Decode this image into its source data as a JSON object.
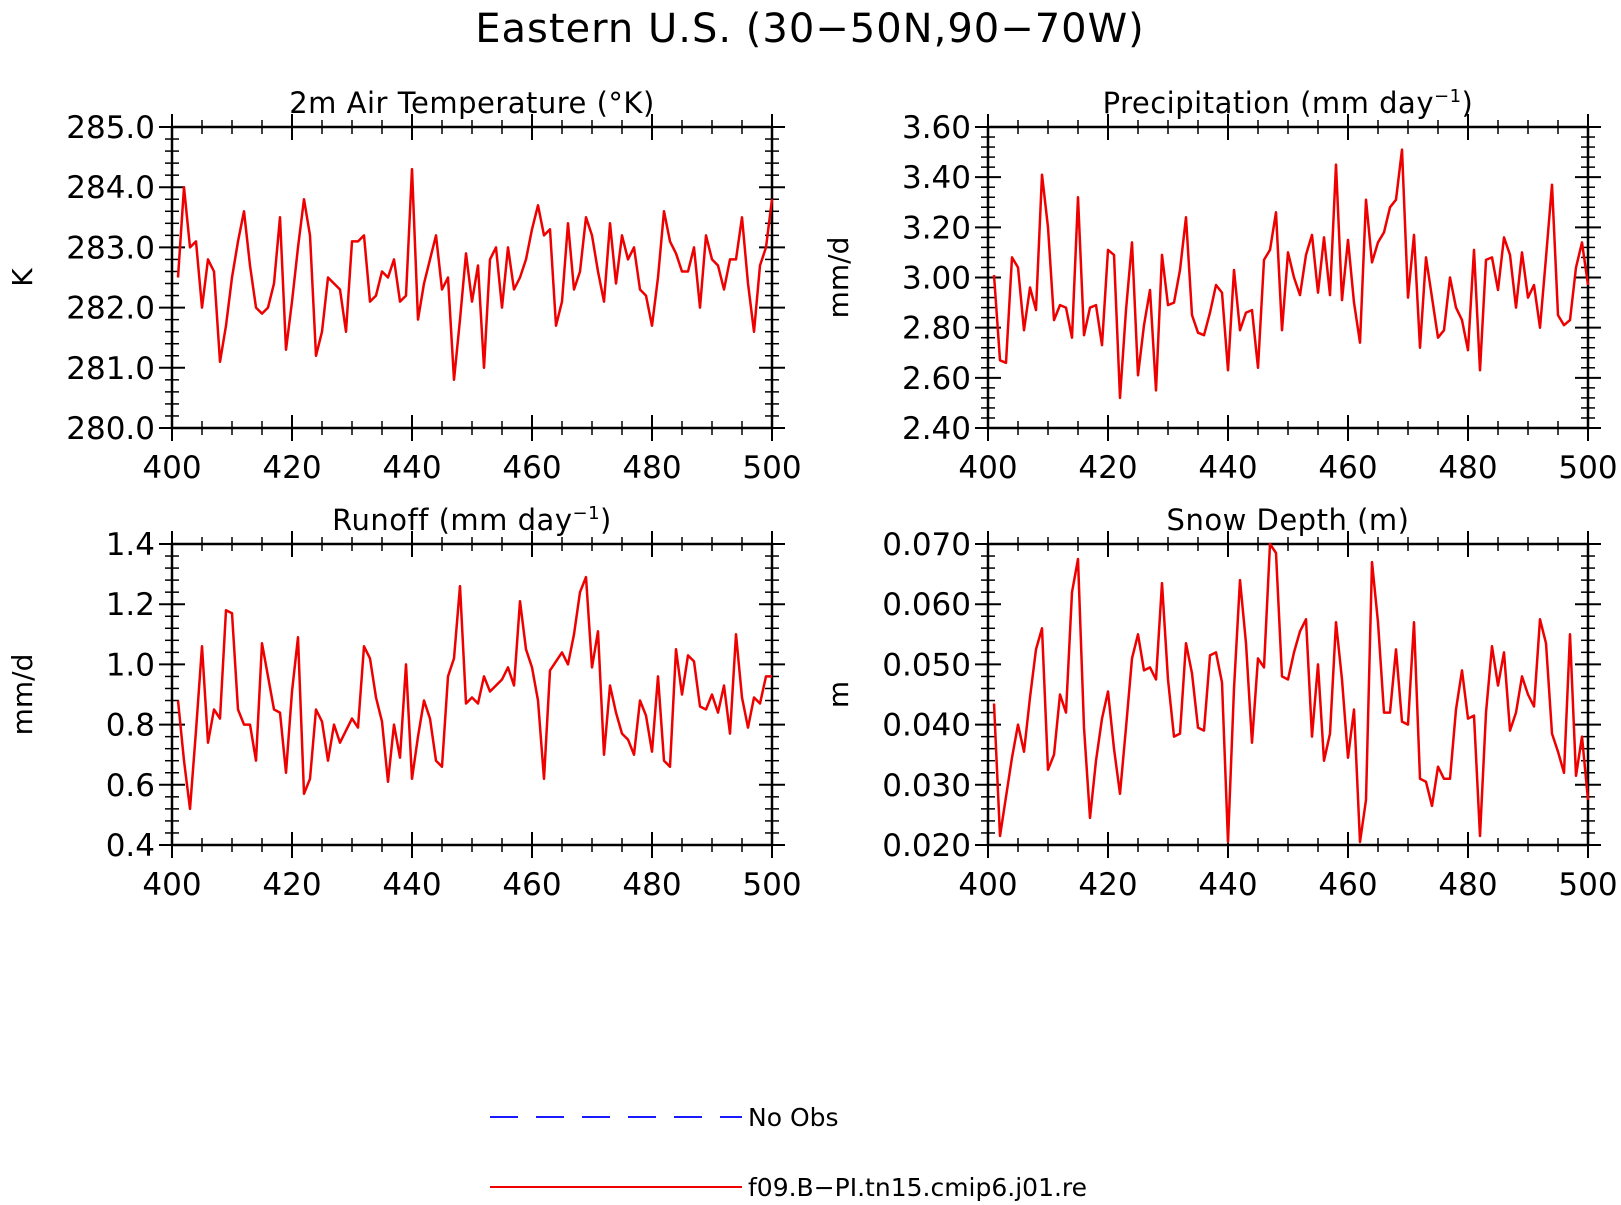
{
  "title": "Eastern U.S. (30−50N,90−70W)",
  "legend": {
    "placement": "bottom-center",
    "entries": [
      {
        "label": "No Obs",
        "color": "#1a1aff",
        "style": "dashed"
      },
      {
        "label": "f09.B−PI.tn15.cmip6.j01.re",
        "color": "#ee0000",
        "style": "solid"
      }
    ]
  },
  "chart_data": [
    {
      "type": "line",
      "title": "2m Air Temperature (°K)",
      "title_sup": "",
      "title_end": "",
      "ylabel": "K",
      "xlim": [
        400,
        500
      ],
      "ylim": [
        280,
        285
      ],
      "yticks": [
        280.0,
        281.0,
        282.0,
        283.0,
        284.0,
        285.0
      ],
      "ytick_labels": [
        "280.0",
        "281.0",
        "282.0",
        "283.0",
        "284.0",
        "285.0"
      ],
      "xticks": [
        400,
        420,
        440,
        460,
        480,
        500
      ],
      "xtick_labels": [
        "400",
        "420",
        "440",
        "460",
        "480",
        "500"
      ],
      "series": [
        {
          "name": "f09.B−PI.tn15.cmip6.j01.re",
          "color": "#ee0000",
          "x_start": 401,
          "x_step": 1,
          "values": [
            282.5,
            284.0,
            283.0,
            283.1,
            282.0,
            282.8,
            282.6,
            281.1,
            281.7,
            282.5,
            283.1,
            283.6,
            282.7,
            282.0,
            281.9,
            282.0,
            282.4,
            283.5,
            281.3,
            282.1,
            283.0,
            283.8,
            283.2,
            281.2,
            281.6,
            282.5,
            282.4,
            282.3,
            281.6,
            283.1,
            283.1,
            283.2,
            282.1,
            282.2,
            282.6,
            282.5,
            282.8,
            282.1,
            282.2,
            284.3,
            281.8,
            282.4,
            282.8,
            283.2,
            282.3,
            282.5,
            280.8,
            281.8,
            282.9,
            282.1,
            282.7,
            281.0,
            282.8,
            283.0,
            282.0,
            283.0,
            282.3,
            282.5,
            282.8,
            283.3,
            283.7,
            283.2,
            283.3,
            281.7,
            282.1,
            283.4,
            282.3,
            282.6,
            283.5,
            283.2,
            282.6,
            282.1,
            283.4,
            282.4,
            283.2,
            282.8,
            283.0,
            282.3,
            282.2,
            281.7,
            282.5,
            283.6,
            283.1,
            282.9,
            282.6,
            282.6,
            283.0,
            282.0,
            283.2,
            282.8,
            282.7,
            282.3,
            282.8,
            282.8,
            283.5,
            282.4,
            281.6,
            282.7,
            283.0,
            283.8
          ]
        }
      ]
    },
    {
      "type": "line",
      "title": "Precipitation (mm day",
      "title_sup": "−1",
      "title_end": ")",
      "ylabel": "mm/d",
      "xlim": [
        400,
        500
      ],
      "ylim": [
        2.4,
        3.6
      ],
      "yticks": [
        2.4,
        2.6,
        2.8,
        3.0,
        3.2,
        3.4,
        3.6
      ],
      "ytick_labels": [
        "2.40",
        "2.60",
        "2.80",
        "3.00",
        "3.20",
        "3.40",
        "3.60"
      ],
      "xticks": [
        400,
        420,
        440,
        460,
        480,
        500
      ],
      "xtick_labels": [
        "400",
        "420",
        "440",
        "460",
        "480",
        "500"
      ],
      "series": [
        {
          "name": "f09.B−PI.tn15.cmip6.j01.re",
          "color": "#ee0000",
          "x_start": 401,
          "x_step": 1,
          "values": [
            3.01,
            2.67,
            2.66,
            3.08,
            3.04,
            2.79,
            2.96,
            2.87,
            3.41,
            3.2,
            2.83,
            2.89,
            2.88,
            2.76,
            3.32,
            2.77,
            2.88,
            2.89,
            2.73,
            3.11,
            3.09,
            2.52,
            2.87,
            3.14,
            2.61,
            2.81,
            2.95,
            2.55,
            3.09,
            2.89,
            2.9,
            3.03,
            3.24,
            2.85,
            2.78,
            2.77,
            2.86,
            2.97,
            2.94,
            2.63,
            3.03,
            2.79,
            2.86,
            2.87,
            2.64,
            3.07,
            3.11,
            3.26,
            2.79,
            3.1,
            3.0,
            2.93,
            3.09,
            3.17,
            2.94,
            3.16,
            2.93,
            3.45,
            2.91,
            3.15,
            2.9,
            2.74,
            3.31,
            3.06,
            3.14,
            3.18,
            3.28,
            3.31,
            3.51,
            2.92,
            3.17,
            2.72,
            3.08,
            2.92,
            2.76,
            2.79,
            3.0,
            2.88,
            2.83,
            2.71,
            3.11,
            2.63,
            3.07,
            3.08,
            2.95,
            3.16,
            3.09,
            2.88,
            3.1,
            2.92,
            2.97,
            2.8,
            3.08,
            3.37,
            2.85,
            2.81,
            2.83,
            3.04,
            3.14,
            2.97
          ]
        }
      ]
    },
    {
      "type": "line",
      "title": "Runoff (mm day",
      "title_sup": "−1",
      "title_end": ")",
      "ylabel": "mm/d",
      "xlim": [
        400,
        500
      ],
      "ylim": [
        0.4,
        1.4
      ],
      "yticks": [
        0.4,
        0.6,
        0.8,
        1.0,
        1.2,
        1.4
      ],
      "ytick_labels": [
        "0.4",
        "0.6",
        "0.8",
        "1.0",
        "1.2",
        "1.4"
      ],
      "xticks": [
        400,
        420,
        440,
        460,
        480,
        500
      ],
      "xtick_labels": [
        "400",
        "420",
        "440",
        "460",
        "480",
        "500"
      ],
      "series": [
        {
          "name": "f09.B−PI.tn15.cmip6.j01.re",
          "color": "#ee0000",
          "x_start": 401,
          "x_step": 1,
          "values": [
            0.88,
            0.68,
            0.52,
            0.78,
            1.06,
            0.74,
            0.85,
            0.82,
            1.18,
            1.17,
            0.85,
            0.8,
            0.8,
            0.68,
            1.07,
            0.96,
            0.85,
            0.84,
            0.64,
            0.91,
            1.09,
            0.57,
            0.62,
            0.85,
            0.81,
            0.68,
            0.8,
            0.74,
            0.78,
            0.82,
            0.79,
            1.06,
            1.02,
            0.89,
            0.81,
            0.61,
            0.8,
            0.69,
            1.0,
            0.62,
            0.76,
            0.88,
            0.82,
            0.68,
            0.66,
            0.96,
            1.02,
            1.26,
            0.87,
            0.89,
            0.87,
            0.96,
            0.91,
            0.93,
            0.95,
            0.99,
            0.93,
            1.21,
            1.05,
            0.99,
            0.88,
            0.62,
            0.98,
            1.01,
            1.04,
            1.0,
            1.1,
            1.24,
            1.29,
            0.99,
            1.11,
            0.7,
            0.93,
            0.84,
            0.77,
            0.75,
            0.7,
            0.88,
            0.83,
            0.71,
            0.96,
            0.68,
            0.66,
            1.05,
            0.9,
            1.03,
            1.01,
            0.86,
            0.85,
            0.9,
            0.84,
            0.93,
            0.77,
            1.1,
            0.89,
            0.79,
            0.89,
            0.87,
            0.96,
            0.96
          ]
        }
      ]
    },
    {
      "type": "line",
      "title": "Snow Depth (m)",
      "title_sup": "",
      "title_end": "",
      "ylabel": "m",
      "xlim": [
        400,
        500
      ],
      "ylim": [
        0.02,
        0.07
      ],
      "yticks": [
        0.02,
        0.03,
        0.04,
        0.05,
        0.06,
        0.07
      ],
      "ytick_labels": [
        "0.020",
        "0.030",
        "0.040",
        "0.050",
        "0.060",
        "0.070"
      ],
      "xticks": [
        400,
        420,
        440,
        460,
        480,
        500
      ],
      "xtick_labels": [
        "400",
        "420",
        "440",
        "460",
        "480",
        "500"
      ],
      "series": [
        {
          "name": "f09.B−PI.tn15.cmip6.j01.re",
          "color": "#ee0000",
          "x_start": 401,
          "x_step": 1,
          "values": [
            0.0435,
            0.0215,
            0.028,
            0.0345,
            0.04,
            0.0355,
            0.0445,
            0.0525,
            0.056,
            0.0325,
            0.035,
            0.045,
            0.042,
            0.062,
            0.0675,
            0.0395,
            0.0245,
            0.034,
            0.041,
            0.0455,
            0.036,
            0.0285,
            0.0395,
            0.051,
            0.055,
            0.049,
            0.0495,
            0.0475,
            0.0635,
            0.0475,
            0.038,
            0.0385,
            0.0535,
            0.0485,
            0.0395,
            0.039,
            0.0515,
            0.052,
            0.047,
            0.0205,
            0.046,
            0.064,
            0.0535,
            0.037,
            0.051,
            0.0495,
            0.07,
            0.0685,
            0.048,
            0.0475,
            0.052,
            0.0555,
            0.0575,
            0.038,
            0.05,
            0.034,
            0.0385,
            0.057,
            0.0475,
            0.0345,
            0.0425,
            0.0205,
            0.0275,
            0.067,
            0.057,
            0.042,
            0.042,
            0.0525,
            0.0405,
            0.04,
            0.057,
            0.031,
            0.0305,
            0.0265,
            0.033,
            0.031,
            0.031,
            0.0425,
            0.049,
            0.041,
            0.0415,
            0.0215,
            0.042,
            0.053,
            0.0465,
            0.052,
            0.039,
            0.042,
            0.048,
            0.045,
            0.043,
            0.0575,
            0.0535,
            0.0385,
            0.0355,
            0.032,
            0.055,
            0.0315,
            0.038,
            0.0275
          ]
        }
      ]
    }
  ]
}
